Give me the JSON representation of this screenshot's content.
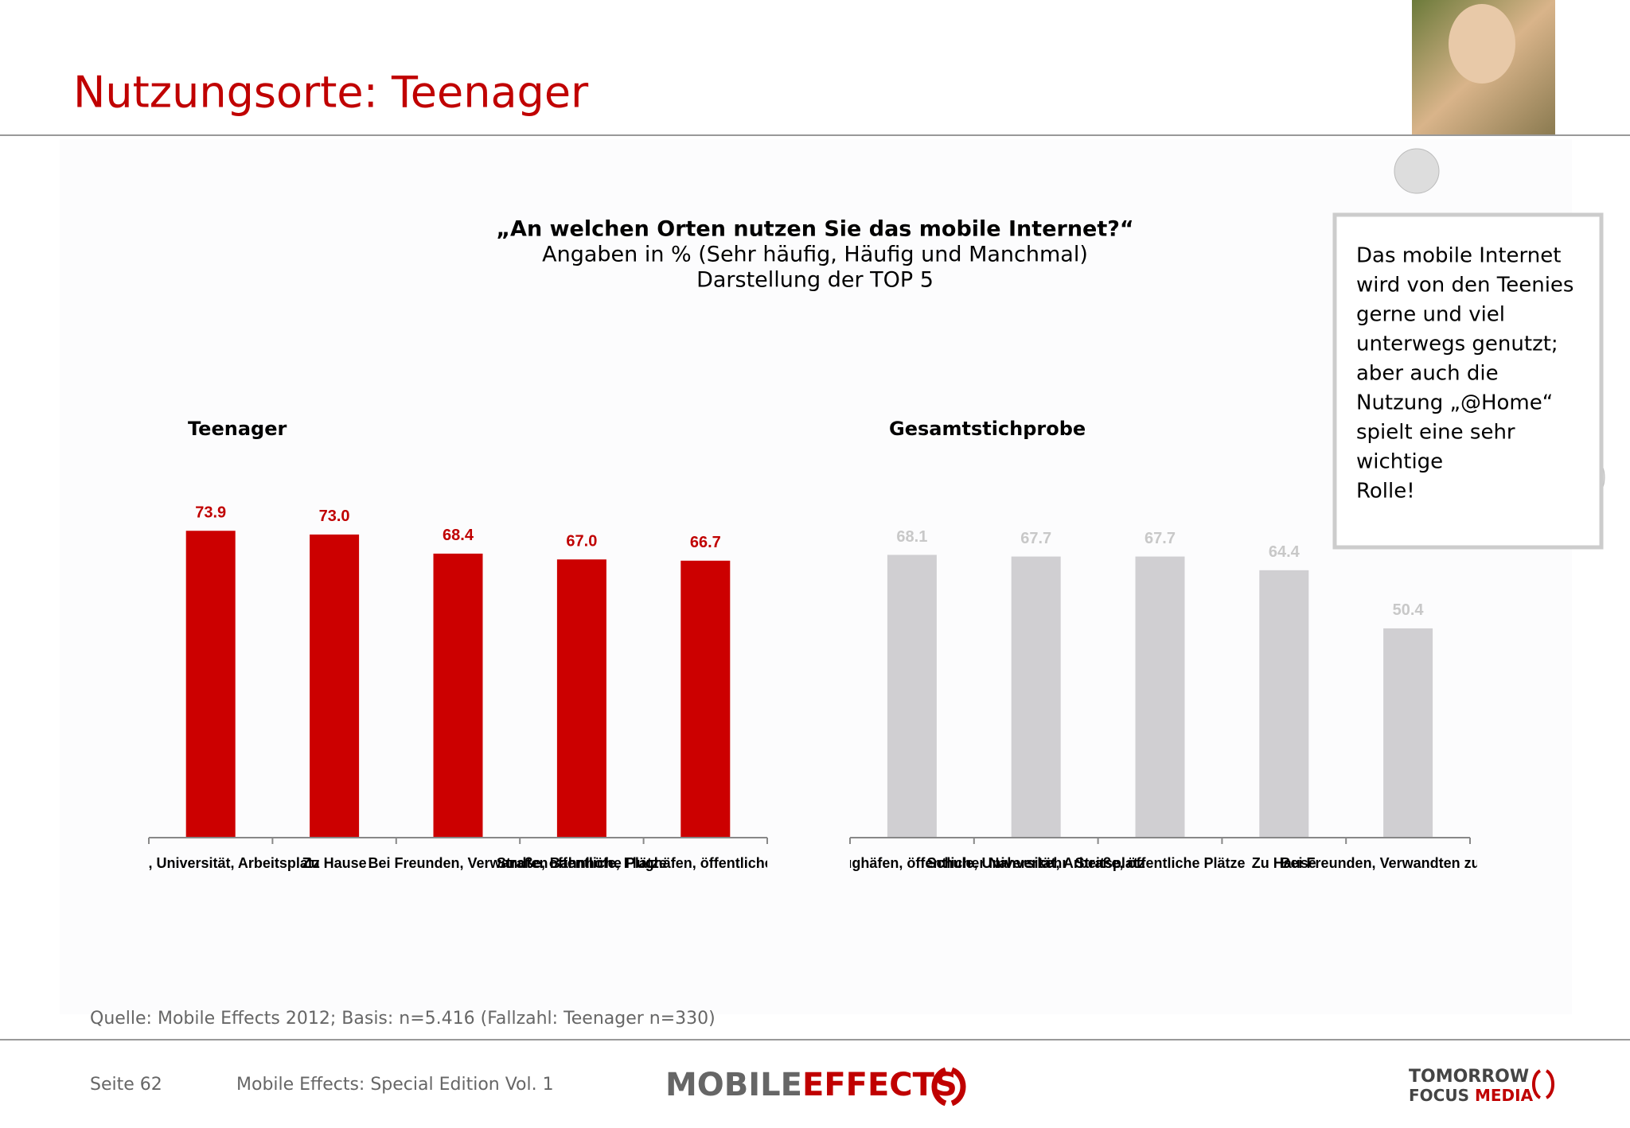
{
  "header": {
    "title": "Nutzungsorte: Teenager"
  },
  "question": "„An welchen Orten nutzen Sie das mobile Internet?“",
  "subtitle_lines": [
    "Angaben in % (Sehr häufig, Häufig und Manchmal)",
    "Darstellung der TOP 5"
  ],
  "callout_lines": [
    "Das mobile Internet",
    "wird von den Teenies",
    "gerne und viel",
    "unterwegs genutzt;",
    "aber auch die",
    "Nutzung „@Home“",
    "spielt eine sehr",
    "wichtige",
    "Rolle!"
  ],
  "chart_data": [
    {
      "type": "bar",
      "title": "Teenager",
      "categories": [
        "Schule, Universität, Arbeitsplatz",
        "Zu Hause",
        "Bei Freunden, Verwandten",
        "Straße, öffentliche Plätze",
        "Bahnhöfe, Flughäfen, öffentlicher Nahverkehr"
      ],
      "values": [
        73.9,
        73.0,
        68.4,
        67.0,
        66.7
      ],
      "value_labels": [
        "73.9",
        "73.0",
        "68.4",
        "67.0",
        "66.7"
      ],
      "color": "#cc0000",
      "label_color": "#c00000",
      "ylim": [
        0,
        100
      ]
    },
    {
      "type": "bar",
      "title": "Gesamtstichprobe",
      "categories": [
        "Bahnhöfe, Flughäfen, öffentlicher Nahverkehr",
        "Schule, Universität, Arbeitsplatz",
        "Straße, öffentliche Plätze",
        "Zu Hause",
        "Bei Freunden, Verwandten zu Besuch"
      ],
      "values": [
        68.1,
        67.7,
        67.7,
        64.4,
        50.4
      ],
      "value_labels": [
        "68.1",
        "67.7",
        "67.7",
        "64.4",
        "50.4"
      ],
      "color": "#d0cfd2",
      "label_color": "#c8c8c8",
      "ylim": [
        0,
        100
      ]
    }
  ],
  "source": "Quelle: Mobile Effects 2012; Basis: n=5.416 (Fallzahl: Teenager n=330)",
  "footer": {
    "page": "Seite 62",
    "publication": "Mobile Effects: Special Edition Vol. 1",
    "logo_left_a": "MOBILE",
    "logo_left_b": "EFFECTS",
    "logo_right_a": "TOMORROW",
    "logo_right_b": "FOCUS",
    "logo_right_c": "MEDIA"
  }
}
